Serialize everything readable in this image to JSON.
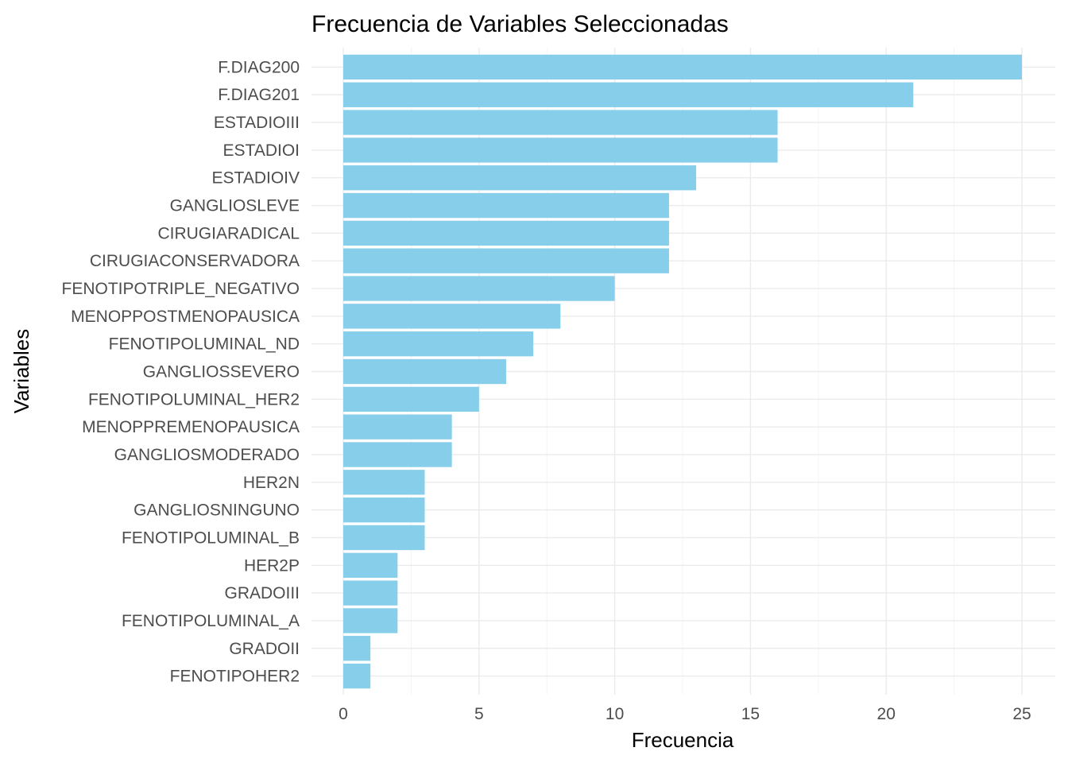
{
  "chart_data": {
    "type": "bar",
    "orientation": "horizontal",
    "title": "Frecuencia de Variables Seleccionadas",
    "xlabel": "Frecuencia",
    "ylabel": "Variables",
    "xlim": [
      0,
      25
    ],
    "x_ticks": [
      0,
      5,
      10,
      15,
      20,
      25
    ],
    "grid": true,
    "bar_color": "#87CEEB",
    "categories": [
      "F.DIAG200",
      "F.DIAG201",
      "ESTADIOIII",
      "ESTADIOI",
      "ESTADIOIV",
      "GANGLIOSLEVE",
      "CIRUGIARADICAL",
      "CIRUGIACONSERVADORA",
      "FENOTIPOTRIPLE_NEGATIVO",
      "MENOPPOSTMENOPAUSICA",
      "FENOTIPOLUMINAL_ND",
      "GANGLIOSSEVERO",
      "FENOTIPOLUMINAL_HER2",
      "MENOPPREMENOPAUSICA",
      "GANGLIOSMODERADO",
      "HER2N",
      "GANGLIOSNINGUNO",
      "FENOTIPOLUMINAL_B",
      "HER2P",
      "GRADOIII",
      "FENOTIPOLUMINAL_A",
      "GRADOII",
      "FENOTIPOHER2"
    ],
    "values": [
      25,
      21,
      16,
      16,
      13,
      12,
      12,
      12,
      10,
      8,
      7,
      6,
      5,
      4,
      4,
      3,
      3,
      3,
      2,
      2,
      2,
      1,
      1
    ]
  }
}
